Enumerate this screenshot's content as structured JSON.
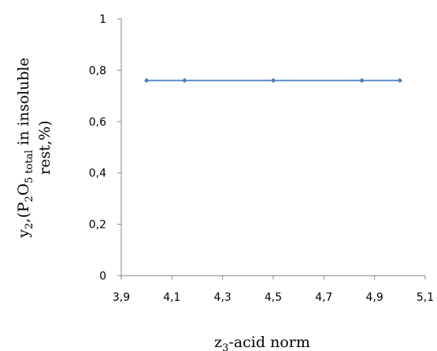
{
  "chart_data": {
    "type": "line",
    "title": "",
    "xlabel": {
      "prefix": "z",
      "sub": "3",
      "suffix": "-acid norm"
    },
    "ylabel": {
      "line1": {
        "a": "y",
        "a_sub": "2",
        "b": ",(P",
        "b_sub": "2",
        "c": "O",
        "c_sub": "5 total",
        "d": " in insoluble"
      },
      "line2": "rest,%)"
    },
    "xlim": [
      3.9,
      5.1
    ],
    "ylim": [
      0,
      1
    ],
    "x_ticks": [
      "3,9",
      "4,1",
      "4,3",
      "4,5",
      "4,7",
      "4,9",
      "5,1"
    ],
    "y_ticks": [
      "0",
      "0,2",
      "0,4",
      "0,6",
      "0,8",
      "1"
    ],
    "grid": false,
    "legend": "none",
    "series": [
      {
        "x": [
          4.0,
          4.15,
          4.5,
          4.85,
          5.0
        ],
        "y": [
          0.76,
          0.76,
          0.76,
          0.76,
          0.76
        ],
        "color": "#4a7ebb"
      }
    ]
  }
}
